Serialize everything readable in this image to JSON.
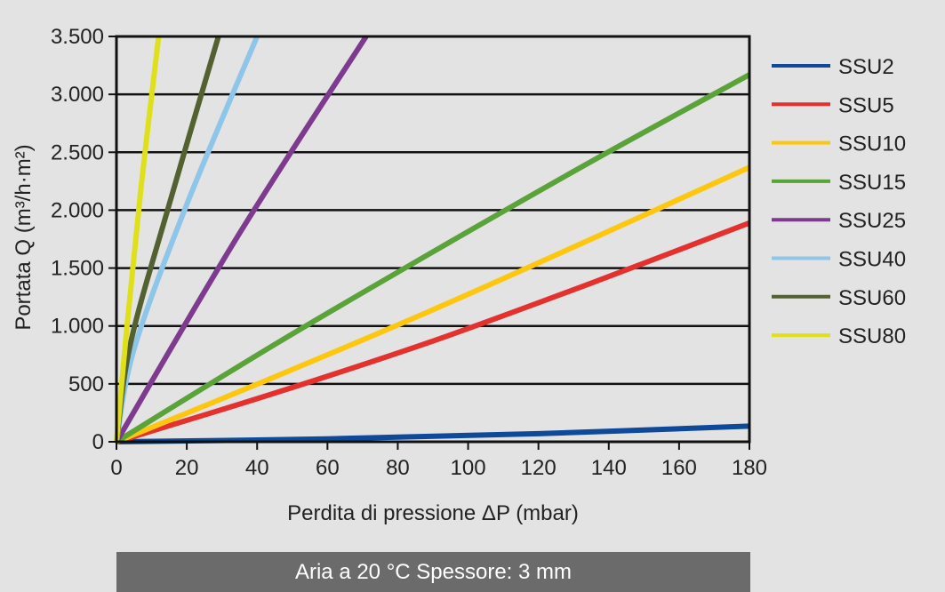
{
  "chart_data": {
    "type": "line",
    "title": "",
    "xlabel": "Perdita di pressione ΔP (mbar)",
    "ylabel": "Portata Q (m³/h·m²)",
    "xlim": [
      0,
      180
    ],
    "ylim": [
      0,
      3500
    ],
    "x_ticks": [
      0,
      20,
      40,
      60,
      80,
      100,
      120,
      140,
      160,
      180
    ],
    "y_ticks": [
      0,
      500,
      1000,
      1500,
      2000,
      2500,
      3000,
      3500
    ],
    "y_tick_labels": [
      "0",
      "500",
      "1.000",
      "1.500",
      "2.000",
      "2.500",
      "3.000",
      "3.500"
    ],
    "grid": "horizontal",
    "legend_position": "right",
    "series": [
      {
        "name": "SSU2",
        "color": "#0e4a99",
        "points": [
          [
            0,
            0
          ],
          [
            60,
            25
          ],
          [
            120,
            70
          ],
          [
            180,
            135
          ]
        ]
      },
      {
        "name": "SSU5",
        "color": "#e3312d",
        "points": [
          [
            0,
            0
          ],
          [
            45,
            420
          ],
          [
            90,
            870
          ],
          [
            135,
            1370
          ],
          [
            180,
            1890
          ]
        ]
      },
      {
        "name": "SSU10",
        "color": "#fdc70f",
        "points": [
          [
            0,
            0
          ],
          [
            45,
            560
          ],
          [
            90,
            1140
          ],
          [
            135,
            1750
          ],
          [
            180,
            2370
          ]
        ]
      },
      {
        "name": "SSU15",
        "color": "#5aa338",
        "points": [
          [
            0,
            0
          ],
          [
            45,
            840
          ],
          [
            90,
            1640
          ],
          [
            135,
            2420
          ],
          [
            180,
            3170
          ]
        ]
      },
      {
        "name": "SSU25",
        "color": "#7d3a8f",
        "points": [
          [
            0,
            0
          ],
          [
            35,
            1800
          ],
          [
            71,
            3500
          ]
        ]
      },
      {
        "name": "SSU40",
        "color": "#8ec6ea",
        "points": [
          [
            0,
            0
          ],
          [
            5,
            800
          ],
          [
            20,
            2050
          ],
          [
            40,
            3500
          ]
        ]
      },
      {
        "name": "SSU60",
        "color": "#52612f",
        "points": [
          [
            0,
            0
          ],
          [
            4,
            850
          ],
          [
            15,
            2050
          ],
          [
            29,
            3500
          ]
        ]
      },
      {
        "name": "SSU80",
        "color": "#dfe01a",
        "points": [
          [
            0,
            0
          ],
          [
            3,
            1000
          ],
          [
            7,
            2200
          ],
          [
            12,
            3500
          ]
        ]
      }
    ]
  },
  "caption": "Aria a 20 °C   Spessore: 3 mm"
}
